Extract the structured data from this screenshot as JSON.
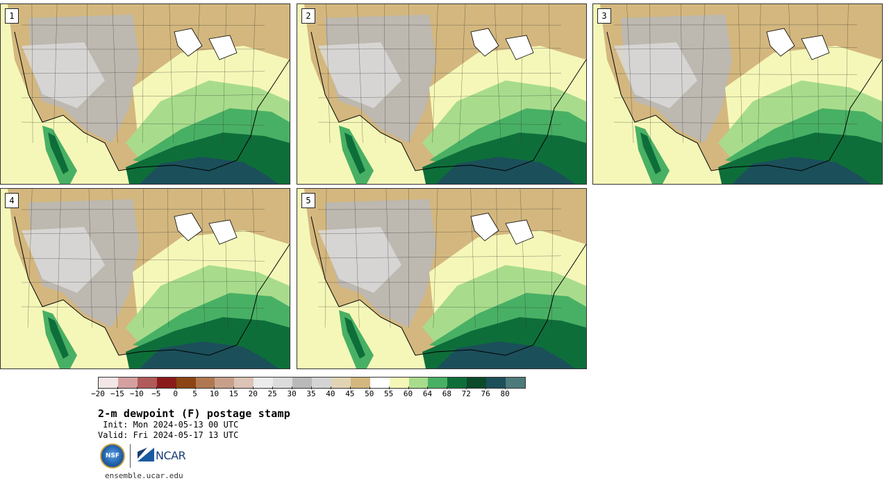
{
  "panels": [
    {
      "label": "1"
    },
    {
      "label": "2"
    },
    {
      "label": "3"
    },
    {
      "label": "4"
    },
    {
      "label": "5"
    }
  ],
  "colorbar": {
    "colors": [
      "#f3e6e6",
      "#d4a0a0",
      "#b05a5a",
      "#8b1a1a",
      "#8b4513",
      "#b07850",
      "#c8a08a",
      "#dcc3b5",
      "#ebebeb",
      "#dcdcdc",
      "#b9b9b9",
      "#d4d4d4",
      "#e0d4b4",
      "#d3b77e",
      "#ffffff",
      "#f5f7b8",
      "#a8dc8c",
      "#48b064",
      "#0e6e3a",
      "#0b4a2a",
      "#1b4f5a",
      "#4d7a7a"
    ],
    "tick_labels": [
      "−20",
      "−15",
      "−10",
      "−5",
      "0",
      "5",
      "10",
      "15",
      "20",
      "25",
      "30",
      "35",
      "40",
      "45",
      "50",
      "55",
      "60",
      "64",
      "68",
      "72",
      "76",
      "80"
    ]
  },
  "title": "2-m dewpoint (F) postage stamp",
  "init": " Init: Mon 2024-05-13 00 UTC",
  "valid": "Valid: Fri 2024-05-17 13 UTC",
  "logos": {
    "nsf": "NSF",
    "ncar": "NCAR"
  },
  "site": "ensemble.ucar.edu",
  "colors": {
    "gulf": "#1b4f5a",
    "deep_green": "#0e6e3a",
    "brown": "#d3b77e",
    "gray": "#b9b9b9",
    "pale_yellow": "#f5f7b8",
    "light_green": "#a8dc8c",
    "med_green": "#48b064"
  }
}
